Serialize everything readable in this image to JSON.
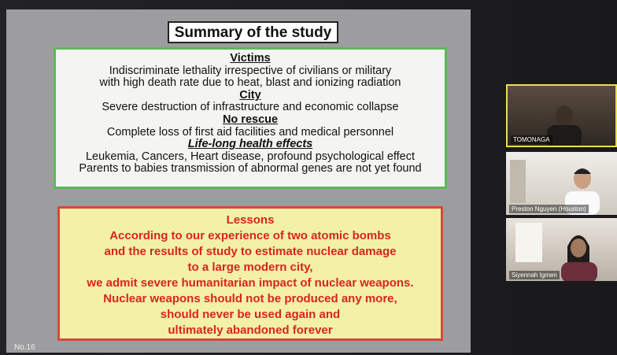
{
  "slide": {
    "title": "Summary of the study",
    "summary": [
      {
        "heading": "Victims",
        "lines": [
          "Indiscriminate lethality irrespective of civilians or military",
          "with high death rate due to heat, blast and ionizing radiation"
        ]
      },
      {
        "heading": "City",
        "lines": [
          "Severe destruction of infrastructure and economic collapse"
        ]
      },
      {
        "heading": "No rescue",
        "lines": [
          "Complete loss of first aid facilities and medical personnel"
        ]
      },
      {
        "heading": "Life-long health effects",
        "lines": [
          "Leukemia, Cancers, Heart disease, profound psychological effect",
          "Parents to babies transmission of abnormal genes are not yet found"
        ]
      }
    ],
    "lessons": {
      "heading": "Lessons",
      "lines": [
        "According to our experience of two atomic bombs",
        "and the results of study to estimate nuclear damage",
        "to a large modern city,",
        "we admit severe humanitarian impact of nuclear weapons.",
        "Nuclear weapons should not be produced any more,",
        "should never be used again and",
        "ultimately abandoned forever"
      ]
    },
    "page_number": "No.16"
  },
  "participants": [
    "TOMONAGA",
    "Preston Nguyen (Houston)",
    "Siyennah Igmen"
  ]
}
